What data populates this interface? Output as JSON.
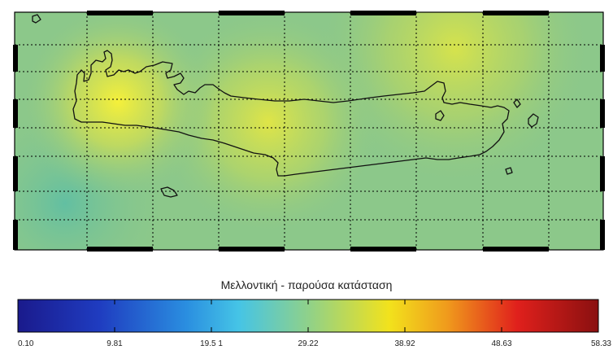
{
  "colorbar": {
    "title": "Μελλοντική - παρούσα κατάσταση",
    "ticks": [
      "0.10",
      "9.81",
      "19.5 1",
      "29.22",
      "38.92",
      "48.63",
      "58.33"
    ],
    "min": 0.1,
    "max": 58.33,
    "colormap": "jet",
    "colors": [
      "#1a1a8c",
      "#1f5fd6",
      "#38b4e8",
      "#8fd18a",
      "#f2e21c",
      "#f08a1c",
      "#e0201c",
      "#8a1010"
    ]
  },
  "map": {
    "region": "Crete",
    "background_level_color": "#8cc88a",
    "hotspot_color": "#f5f03a",
    "frame_color": "#000000",
    "grid_color": "#000000",
    "grid_style": "dotted"
  }
}
